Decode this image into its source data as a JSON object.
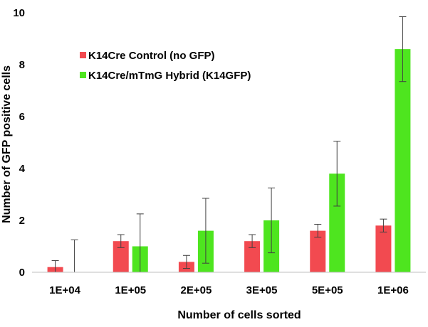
{
  "chart_data": {
    "type": "bar",
    "categories": [
      "1E+04",
      "1E+05",
      "2E+05",
      "3E+05",
      "5E+05",
      "1E+06"
    ],
    "series": [
      {
        "name": "K14Cre Control (no GFP)",
        "color": "#f24a50",
        "values": [
          0.2,
          1.2,
          0.4,
          1.2,
          1.6,
          1.8
        ],
        "error": [
          0.25,
          0.25,
          0.25,
          0.25,
          0.25,
          0.25
        ]
      },
      {
        "name": "K14Cre/mTmG Hybrid (K14GFP)",
        "color": "#4ee51f",
        "values": [
          0.0,
          1.0,
          1.6,
          2.0,
          3.8,
          8.6
        ],
        "error": [
          1.25,
          1.25,
          1.25,
          1.25,
          1.25,
          1.25
        ]
      }
    ],
    "title": "",
    "xlabel": "Number of cells sorted",
    "ylabel": "Number of GFP positive cells",
    "ylim": [
      0,
      10
    ],
    "yticks": [
      0,
      2,
      4,
      6,
      8,
      10
    ],
    "grid": false,
    "legend_position": "top-left"
  }
}
